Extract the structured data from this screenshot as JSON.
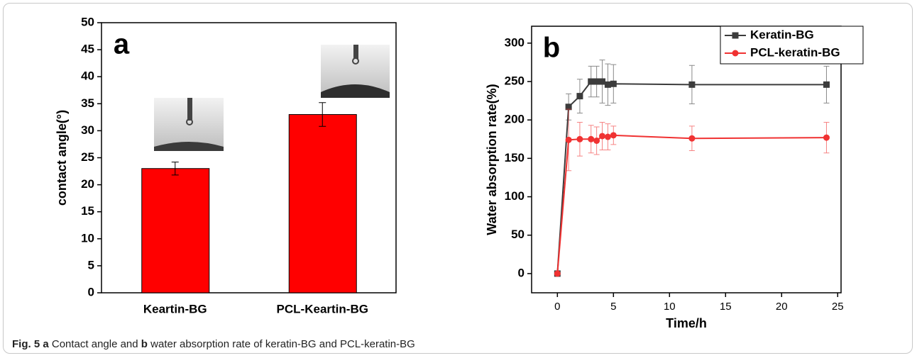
{
  "chart_data": [
    {
      "type": "bar",
      "panel": "a",
      "ylabel": "contact angle(°)",
      "categories": [
        "Keartin-BG",
        "PCL-Keartin-BG"
      ],
      "values": [
        23,
        33
      ],
      "errors": [
        1.2,
        2.2
      ],
      "color": "#ff0000",
      "ylim": [
        0,
        50
      ],
      "yticks": [
        0,
        5,
        10,
        15,
        20,
        25,
        30,
        35,
        40,
        45,
        50
      ]
    },
    {
      "type": "line",
      "panel": "b",
      "xlabel": "Time/h",
      "ylabel": "Water absorption rate(%)",
      "x": [
        0,
        1,
        2,
        3,
        3.5,
        4,
        4.5,
        5,
        12,
        24
      ],
      "series": [
        {
          "name": "Keratin-BG",
          "color": "#3c3c3c",
          "marker": "square",
          "values": [
            0,
            217,
            231,
            250,
            250,
            250,
            246,
            247,
            246,
            246
          ],
          "errors": [
            0,
            17,
            22,
            20,
            20,
            28,
            27,
            25,
            25,
            24
          ]
        },
        {
          "name": "PCL-keratin-BG",
          "color": "#f03232",
          "marker": "circle",
          "values": [
            0,
            174,
            175,
            175,
            173,
            179,
            178,
            180,
            176,
            177
          ],
          "errors": [
            0,
            40,
            22,
            18,
            18,
            18,
            17,
            12,
            16,
            20
          ]
        }
      ],
      "xlim": [
        -2.3,
        25.3
      ],
      "xticks": [
        0,
        5,
        10,
        15,
        20,
        25
      ],
      "ylim": [
        -25,
        322
      ],
      "yticks": [
        0,
        50,
        100,
        150,
        200,
        250,
        300
      ],
      "legend": "upper right"
    }
  ],
  "caption": [
    "Fig. 5",
    "a",
    "Contact angle and",
    "b",
    "water absorption rate of keratin-BG and PCL-keratin-BG"
  ]
}
